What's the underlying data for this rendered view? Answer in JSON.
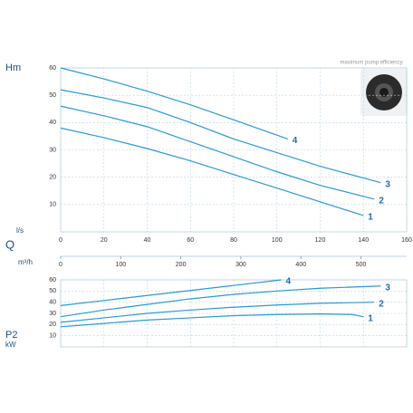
{
  "chart_data": [
    {
      "type": "line",
      "subtitle": "maximum pump efficiency",
      "ylabel": "Hm",
      "xlabel": "l/s",
      "axis_title": "Q",
      "xlim": [
        0,
        160
      ],
      "xticks": [
        0,
        20,
        40,
        60,
        80,
        100,
        120,
        140,
        160
      ],
      "ylim": [
        0,
        60
      ],
      "yticks": [
        10,
        20,
        30,
        40,
        50,
        60
      ],
      "grid": true,
      "x2label": "m³/h",
      "x2lim": [
        0,
        576
      ],
      "x2ticks": [
        0,
        100,
        200,
        300,
        400,
        500
      ],
      "series": [
        {
          "name": "1",
          "color": "#2a9ad4",
          "x": [
            0,
            20,
            40,
            60,
            80,
            100,
            120,
            140
          ],
          "values": [
            38,
            34.5,
            30.5,
            26,
            21,
            16,
            11,
            6
          ]
        },
        {
          "name": "2",
          "color": "#2a9ad4",
          "x": [
            0,
            20,
            40,
            60,
            80,
            100,
            120,
            145
          ],
          "values": [
            46,
            42.5,
            38.5,
            33,
            27.5,
            22,
            17,
            12
          ]
        },
        {
          "name": "3",
          "color": "#2a9ad4",
          "x": [
            0,
            20,
            40,
            60,
            80,
            100,
            120,
            148
          ],
          "values": [
            52,
            49,
            45.5,
            40,
            34,
            29,
            24,
            18
          ]
        },
        {
          "name": "4",
          "color": "#2a9ad4",
          "x": [
            0,
            20,
            40,
            60,
            80,
            105
          ],
          "values": [
            60,
            56,
            51.5,
            46.5,
            41,
            34
          ]
        }
      ]
    },
    {
      "type": "line",
      "ylabel": "P2",
      "yunit": "kW",
      "xlim": [
        0,
        160
      ],
      "xticks": [
        0,
        20,
        40,
        60,
        80,
        100,
        120,
        140,
        160
      ],
      "ylim": [
        0,
        60
      ],
      "yticks": [
        10,
        20,
        30,
        40,
        50,
        60
      ],
      "grid": true,
      "series": [
        {
          "name": "1",
          "color": "#2a9ad4",
          "x": [
            0,
            20,
            40,
            60,
            80,
            100,
            120,
            135,
            140
          ],
          "values": [
            18,
            21,
            24,
            26,
            28,
            29,
            29.5,
            29,
            27
          ]
        },
        {
          "name": "2",
          "color": "#2a9ad4",
          "x": [
            0,
            20,
            40,
            60,
            80,
            100,
            120,
            145
          ],
          "values": [
            22,
            26,
            30,
            33,
            35.5,
            37.5,
            39,
            40
          ]
        },
        {
          "name": "3",
          "color": "#2a9ad4",
          "x": [
            0,
            20,
            40,
            60,
            80,
            100,
            120,
            148
          ],
          "values": [
            27,
            33,
            38,
            43,
            47,
            50,
            52.5,
            54.5
          ]
        },
        {
          "name": "4",
          "color": "#2a9ad4",
          "x": [
            0,
            20,
            40,
            60,
            80,
            102
          ],
          "values": [
            37,
            41.5,
            46,
            50.5,
            55,
            60
          ]
        }
      ]
    }
  ]
}
